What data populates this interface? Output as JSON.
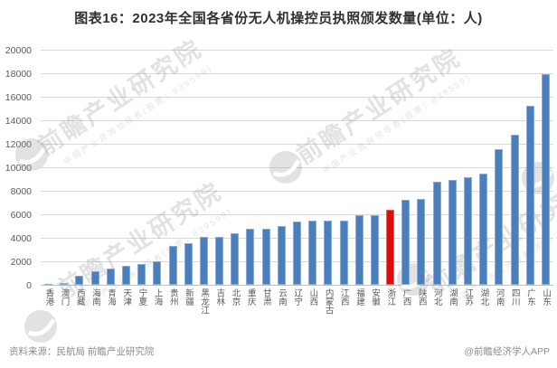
{
  "title": "图表16：2023年全国各省份无人机操控员执照颁发数量(单位：人)",
  "footer": {
    "source": "资料来源：民航局 前瞻产业研究院",
    "credit": "@前瞻经济学人APP"
  },
  "watermark": {
    "brand": "前瞻产业研究院",
    "tagline": "中国产业咨询领导者(股票：839599)"
  },
  "colors": {
    "bar": "#4a7ebd",
    "highlight": "#e00b0b",
    "grid": "#d9d9d9",
    "axis": "#bfbfbf",
    "title_text": "#303030",
    "label_text": "#595959",
    "footer_text": "#8c8c8c"
  },
  "chart_data": {
    "type": "bar",
    "title": "2023年全国各省份无人机操控员执照颁发数量",
    "unit": "人",
    "categories": [
      "香港",
      "澳门",
      "西藏",
      "海南",
      "青海",
      "天津",
      "宁夏",
      "上海",
      "贵州",
      "新疆",
      "黑龙江",
      "吉林",
      "北京",
      "重庆",
      "甘肃",
      "云南",
      "辽宁",
      "山西",
      "内蒙古",
      "江西",
      "福建",
      "安徽",
      "浙江",
      "广西",
      "陕西",
      "河北",
      "湖南",
      "江苏",
      "湖北",
      "河南",
      "四川",
      "广东",
      "山东"
    ],
    "values": [
      100,
      130,
      800,
      1150,
      1400,
      1600,
      1800,
      2000,
      3300,
      3550,
      4050,
      4050,
      4400,
      4800,
      4800,
      5000,
      5400,
      5500,
      5500,
      5500,
      5900,
      5900,
      6400,
      7200,
      7300,
      8750,
      8900,
      9150,
      9500,
      11550,
      12750,
      15200,
      17950
    ],
    "highlight_category": "浙江",
    "ylim": [
      0,
      20000
    ],
    "ytick_step": 2000,
    "yticks": [
      0,
      2000,
      4000,
      6000,
      8000,
      10000,
      12000,
      14000,
      16000,
      18000,
      20000
    ],
    "grid": true,
    "legend": false,
    "xlabel": "",
    "ylabel": ""
  }
}
